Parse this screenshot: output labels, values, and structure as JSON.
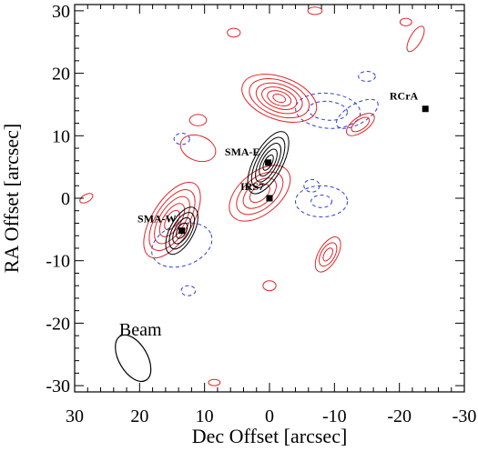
{
  "chart_data": {
    "type": "contour",
    "xlabel": "Dec Offset [arcsec]",
    "ylabel": "RA Offset [arcsec]",
    "xlim": [
      30,
      -30
    ],
    "ylim": [
      -31,
      31
    ],
    "x_inverted": true,
    "xticks": [
      30,
      20,
      10,
      0,
      -10,
      -20,
      -30
    ],
    "yticks": [
      30,
      20,
      10,
      0,
      -10,
      -20,
      -30
    ],
    "tick_labels_x": [
      "30",
      "20",
      "10",
      "0",
      "-10",
      "-20",
      "-30"
    ],
    "tick_labels_y": [
      "30",
      "20",
      "10",
      "0",
      "-10",
      "-20",
      "-30"
    ],
    "grid": false,
    "colors": {
      "positive_red": "#e0262a",
      "negative_blue": "#2b3fd6",
      "black": "#000000"
    },
    "sources": [
      {
        "label": "SMA-E",
        "x": 0.2,
        "y": 5.7
      },
      {
        "label": "SMA-W",
        "x": 13.5,
        "y": -5.2
      },
      {
        "label": "IRS7",
        "x": 0.0,
        "y": 0.0
      },
      {
        "label": "RCrA",
        "x": -24.0,
        "y": 14.3
      }
    ],
    "beam": {
      "label": "Beam",
      "x": 21.0,
      "y": -25.6,
      "major": 4.3,
      "minor": 2.3,
      "pa_deg": 30
    },
    "contours": {
      "black": [
        {
          "cx": 0.2,
          "cy": 5.7,
          "a": [
            5.3,
            4.3,
            3.3,
            2.3,
            1.3
          ],
          "b": [
            2.3,
            1.85,
            1.4,
            1.0,
            0.6
          ],
          "rot": -62
        },
        {
          "cx": 13.5,
          "cy": -5.2,
          "a": [
            4.0,
            3.1,
            2.2,
            1.3
          ],
          "b": [
            1.9,
            1.5,
            1.1,
            0.7
          ],
          "rot": -62
        }
      ],
      "red": [
        {
          "cx": -1.5,
          "cy": 16.0,
          "a": [
            6.0,
            4.8,
            3.7,
            2.8,
            1.9,
            1.0
          ],
          "b": [
            3.4,
            2.8,
            2.2,
            1.6,
            1.1,
            0.6
          ],
          "rot": 20
        },
        {
          "cx": 1.5,
          "cy": 0.8,
          "a": [
            5.5,
            4.2,
            3.0,
            1.8
          ],
          "b": [
            3.3,
            2.5,
            1.8,
            1.1
          ],
          "rot": -40
        },
        {
          "cx": 15.0,
          "cy": -3.5,
          "a": [
            6.6,
            5.3,
            4.1,
            2.9,
            1.7
          ],
          "b": [
            3.2,
            2.6,
            2.0,
            1.4,
            0.9
          ],
          "rot": -58
        },
        {
          "cx": -9.0,
          "cy": -9.0,
          "a": [
            3.0,
            2.0,
            1.1
          ],
          "b": [
            1.5,
            1.1,
            0.6
          ],
          "rot": -60
        },
        {
          "cx": -14.0,
          "cy": 11.8,
          "a": [
            2.5,
            1.6
          ],
          "b": [
            1.2,
            0.8
          ],
          "rot": -35
        },
        {
          "cx": 11.0,
          "cy": 8.0,
          "a": [
            2.8
          ],
          "b": [
            2.0
          ],
          "rot": 20
        },
        {
          "cx": 11.0,
          "cy": 12.5,
          "a": [
            1.3
          ],
          "b": [
            0.9
          ],
          "rot": 0
        },
        {
          "cx": -22.5,
          "cy": 25.5,
          "a": [
            2.2
          ],
          "b": [
            0.9
          ],
          "rot": -60
        },
        {
          "cx": -21.0,
          "cy": 28.2,
          "a": [
            0.9
          ],
          "b": [
            0.6
          ],
          "rot": 0
        },
        {
          "cx": -7.0,
          "cy": 30.0,
          "a": [
            1.1
          ],
          "b": [
            0.6
          ],
          "rot": 0
        },
        {
          "cx": 28.2,
          "cy": 0.0,
          "a": [
            1.1
          ],
          "b": [
            0.6
          ],
          "rot": -30
        },
        {
          "cx": 0.0,
          "cy": -14.0,
          "a": [
            1.0
          ],
          "b": [
            0.8
          ],
          "rot": 0
        },
        {
          "cx": 8.5,
          "cy": -29.5,
          "a": [
            0.9
          ],
          "b": [
            0.5
          ],
          "rot": 0
        },
        {
          "cx": 5.5,
          "cy": 26.5,
          "a": [
            1.0
          ],
          "b": [
            0.7
          ],
          "rot": 0
        }
      ],
      "blue": [
        {
          "cx": -9.0,
          "cy": 14.0,
          "a": [
            5.0,
            3.0
          ],
          "b": [
            2.8,
            1.5
          ],
          "rot": 5
        },
        {
          "cx": -13.5,
          "cy": 13.5,
          "a": [
            3.6
          ],
          "b": [
            1.6
          ],
          "rot": -30
        },
        {
          "cx": -8.0,
          "cy": -0.5,
          "a": [
            4.0,
            1.6
          ],
          "b": [
            2.5,
            1.0
          ],
          "rot": 0
        },
        {
          "cx": 13.5,
          "cy": -7.5,
          "a": [
            4.8
          ],
          "b": [
            3.3
          ],
          "rot": -20
        },
        {
          "cx": 12.5,
          "cy": -14.8,
          "a": [
            1.1
          ],
          "b": [
            0.8
          ],
          "rot": 0
        },
        {
          "cx": 13.5,
          "cy": 9.5,
          "a": [
            1.2
          ],
          "b": [
            0.9
          ],
          "rot": 0
        },
        {
          "cx": -6.5,
          "cy": 2.0,
          "a": [
            1.2
          ],
          "b": [
            1.0
          ],
          "rot": 0
        },
        {
          "cx": -15.0,
          "cy": 19.5,
          "a": [
            1.3
          ],
          "b": [
            0.8
          ],
          "rot": 0
        }
      ]
    }
  }
}
